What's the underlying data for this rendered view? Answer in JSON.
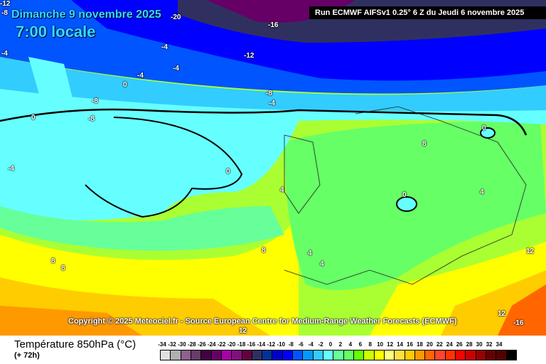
{
  "header": {
    "date": "Dimanche 9 novembre 2025",
    "time": "7:00 locale",
    "run": "Run ECMWF AIFSv1 0.25° 6 Z du Jeudi 6 novembre 2025"
  },
  "copyright": "Copyright © 2025 Meteociel.fr - Source European Centre for Medium-Range Weather Forecasts (ECMWF)",
  "footer": {
    "variable": "Température 850hPa (°C)",
    "lead": "(+ 72h)"
  },
  "contour_labels": [
    "-12",
    "-8",
    "-20",
    "-16",
    "-12",
    "-4",
    "-4",
    "-4",
    "-4",
    "0",
    "-8",
    "-8",
    "-8",
    "-4",
    "0",
    "-4",
    "0",
    "4",
    "8",
    "0",
    "0",
    "4",
    "4",
    "4",
    "8",
    "8",
    "8",
    "12",
    "12",
    "12",
    "-16"
  ],
  "legend": {
    "labels": [
      "-34",
      "-32",
      "-30",
      "-28",
      "-26",
      "-24",
      "-22",
      "-20",
      "-18",
      "-16",
      "-14",
      "-12",
      "-10",
      "-8",
      "-6",
      "-4",
      "-2",
      "0",
      "2",
      "4",
      "6",
      "8",
      "10",
      "12",
      "14",
      "16",
      "18",
      "20",
      "22",
      "24",
      "26",
      "28",
      "30",
      "32",
      "34"
    ],
    "colors": [
      "#e0e0e0",
      "#b0b0b0",
      "#906090",
      "#663d66",
      "#440044",
      "#660066",
      "#aa00aa",
      "#801080",
      "#660040",
      "#303060",
      "#003399",
      "#0000cc",
      "#0000ff",
      "#0055ff",
      "#0099ff",
      "#33ccff",
      "#66ffff",
      "#66ff99",
      "#66ff66",
      "#66ff00",
      "#ccff00",
      "#ffff00",
      "#ffff80",
      "#ffe040",
      "#ffcc00",
      "#ff9900",
      "#ff6600",
      "#ff4433",
      "#ff3300",
      "#ff0000",
      "#cc0000",
      "#990000",
      "#660000",
      "#550000",
      "#000000"
    ]
  }
}
